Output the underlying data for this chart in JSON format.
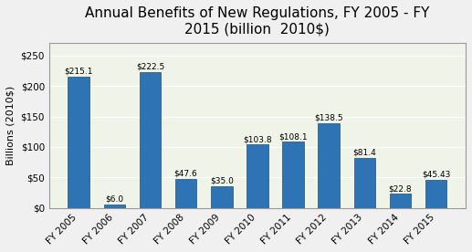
{
  "categories": [
    "FY 2005",
    "FY 2006",
    "FY 2007",
    "FY 2008",
    "FY 2009",
    "FY 2010",
    "FY 2011",
    "FY 2012",
    "FY 2013",
    "FY 2014",
    "FY 2015"
  ],
  "values": [
    215.1,
    6.0,
    222.5,
    47.6,
    35.0,
    103.8,
    108.1,
    138.5,
    81.4,
    22.8,
    45.43
  ],
  "labels": [
    "$215.1",
    "$6.0",
    "$222.5",
    "$47.6",
    "$35.0",
    "$103.8",
    "$108.1",
    "$138.5",
    "$81.4",
    "$22.8",
    "$45.43"
  ],
  "bar_color": "#2E74B5",
  "bar_edge_color": "#1F4E79",
  "background_color": "#F0F4E8",
  "plot_bg_color": "#F0F4E8",
  "title": "Annual Benefits of New Regulations, FY 2005 - FY\n2015 (billion  2010$)",
  "ylabel": "Billions (2010$)",
  "ylim": [
    0,
    270
  ],
  "yticks": [
    0,
    50,
    100,
    150,
    200,
    250
  ],
  "ytick_labels": [
    "$0",
    "$50",
    "$100",
    "$150",
    "$200",
    "$250"
  ],
  "title_fontsize": 11,
  "label_fontsize": 6.5,
  "axis_fontsize": 8,
  "tick_fontsize": 7.5
}
